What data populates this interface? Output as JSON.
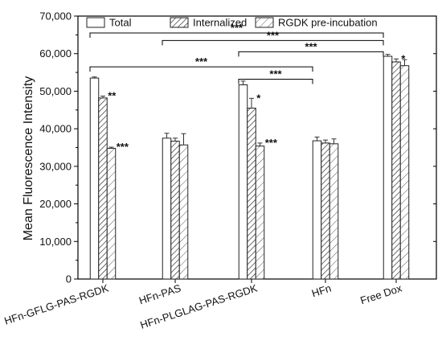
{
  "chart_data": {
    "type": "bar",
    "ylabel": "Mean Fluorescence Intensity",
    "xlabel": "",
    "ylim": [
      0,
      70000
    ],
    "yticks": [
      0,
      10000,
      20000,
      30000,
      40000,
      50000,
      60000,
      70000
    ],
    "ytick_labels": [
      "0",
      "10,000",
      "20,000",
      "30,000",
      "40,000",
      "50,000",
      "60,000",
      "70,000"
    ],
    "categories": [
      "HFn-GFLG-PAS-RGDK",
      "HFn-PAS",
      "HFn-PLGLAG-PAS-RGDK",
      "HFn",
      "Free Dox"
    ],
    "legend_position": "top",
    "series": [
      {
        "name": "Total",
        "pattern": "none",
        "values": [
          53500,
          37500,
          51700,
          36800,
          59300
        ],
        "errors": [
          300,
          1300,
          1000,
          1000,
          500
        ]
      },
      {
        "name": "Internalized",
        "pattern": "hatch-dense",
        "values": [
          48200,
          36700,
          45500,
          36200,
          57800
        ],
        "errors": [
          500,
          800,
          2600,
          800,
          800
        ]
      },
      {
        "name": "RGDK pre-incubation",
        "pattern": "hatch-sparse",
        "values": [
          34800,
          35700,
          35400,
          36000,
          56800
        ],
        "errors": [
          300,
          3000,
          800,
          1300,
          1600
        ]
      }
    ],
    "bar_annotations": [
      {
        "category": 0,
        "series": 1,
        "text": "**"
      },
      {
        "category": 0,
        "series": 2,
        "text": "***"
      },
      {
        "category": 2,
        "series": 1,
        "text": "*"
      },
      {
        "category": 2,
        "series": 2,
        "text": "***"
      },
      {
        "category": 4,
        "series": 1,
        "text": "*"
      }
    ],
    "significance_brackets": [
      {
        "from": 0,
        "to": 4,
        "level": 65500,
        "text": "***"
      },
      {
        "from": 1,
        "to": 4,
        "level": 63500,
        "text": "***"
      },
      {
        "from": 2,
        "to": 4,
        "level": 60500,
        "text": "***"
      },
      {
        "from": 0,
        "to": 3,
        "level": 56500,
        "text": "***"
      },
      {
        "from": 2,
        "to": 3,
        "level": 53200,
        "text": "***"
      }
    ]
  }
}
